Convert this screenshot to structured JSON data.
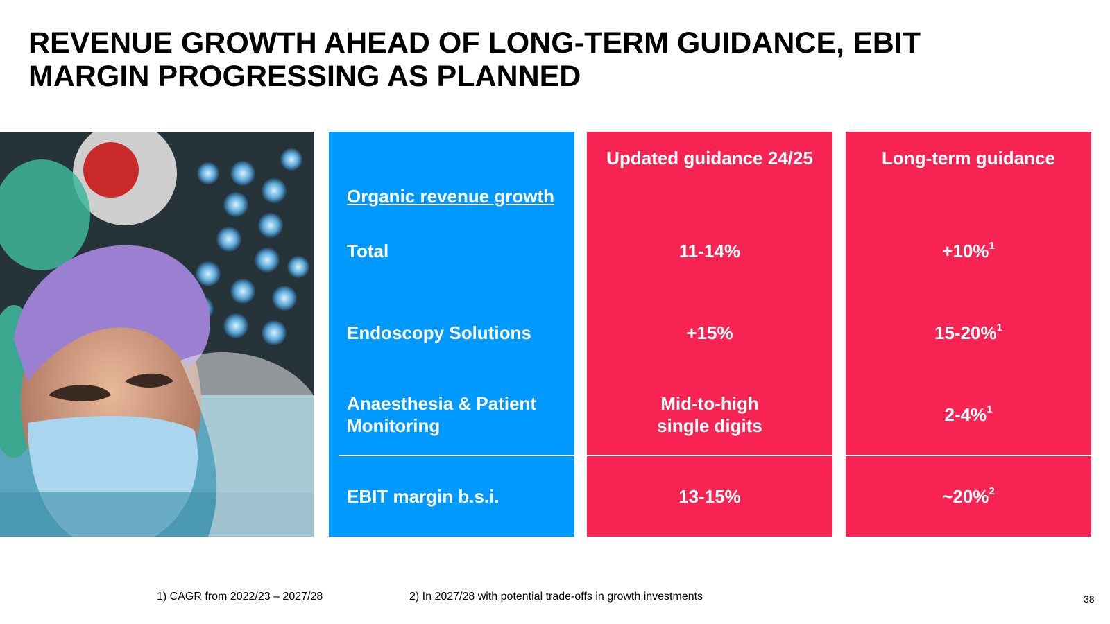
{
  "title": {
    "line1": "REVENUE GROWTH AHEAD OF LONG-TERM GUIDANCE, EBIT",
    "line2": "MARGIN PROGRESSING AS PLANNED"
  },
  "table": {
    "section_label": "Organic revenue growth",
    "col_headers": [
      "Updated guidance 24/25",
      "Long-term guidance"
    ],
    "rows": [
      {
        "label": "Total",
        "updated": "11-14%",
        "longterm": "+10%",
        "longterm_sup": "1"
      },
      {
        "label": "Endoscopy Solutions",
        "updated": "+15%",
        "longterm": "15-20%",
        "longterm_sup": "1"
      },
      {
        "label_line1": "Anaesthesia & Patient",
        "label_line2": "Monitoring",
        "updated_line1": "Mid-to-high",
        "updated_line2": "single digits",
        "longterm": "2-4%",
        "longterm_sup": "1"
      },
      {
        "label": "EBIT margin b.s.i.",
        "updated": "13-15%",
        "longterm": "~20%",
        "longterm_sup": "2"
      }
    ]
  },
  "colors": {
    "blue": "#0099ff",
    "red": "#f72352"
  },
  "footnotes": [
    "1) CAGR from 2022/23 – 2027/28",
    "2) In 2027/28 with potential trade-offs in growth investments"
  ],
  "page_number": "38",
  "photo_icon": "surgeon-photo"
}
